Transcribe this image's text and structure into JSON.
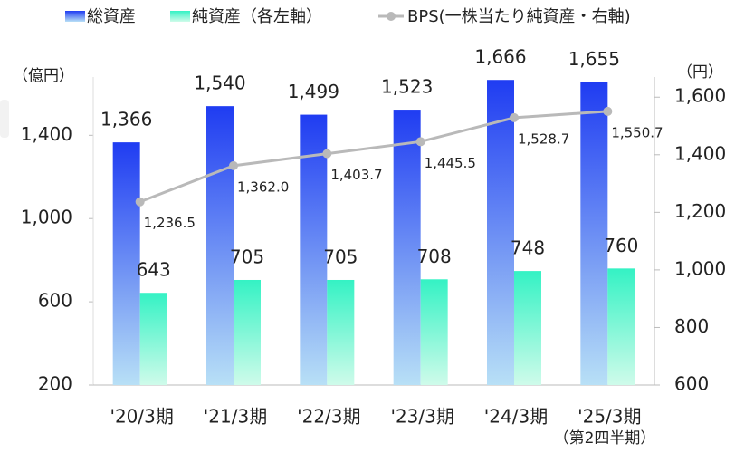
{
  "chart_data": {
    "type": "bar",
    "categories": [
      "'20/3期",
      "'21/3期",
      "'22/3期",
      "'23/3期",
      "'24/3期",
      "'25/3期"
    ],
    "annotation": "（第2四半期）",
    "ylabel": "（億円）",
    "y2label": "（円）",
    "ylim": [
      200,
      1680
    ],
    "yticks": [
      200,
      600,
      {
        "value": 1000,
        "label": "1,000"
      },
      {
        "value": 1400,
        "label": "1,400"
      }
    ],
    "y2lim": [
      600,
      1670
    ],
    "y2ticks": [
      600,
      800,
      {
        "value": 1000,
        "label": "1,000"
      },
      {
        "value": 1200,
        "label": "1,200"
      },
      {
        "value": 1400,
        "label": "1,400"
      },
      {
        "value": 1600,
        "label": "1,600"
      }
    ],
    "series": [
      {
        "name": "総資産",
        "type": "bar",
        "color": "#1f3cf2",
        "values": [
          1366,
          1540,
          1499,
          1523,
          1666,
          1655
        ],
        "value_labels": [
          "1,366",
          "1,540",
          "1,499",
          "1,523",
          "1,666",
          "1,655"
        ]
      },
      {
        "name": "純資産（各左軸）",
        "type": "bar",
        "color": "#34f2c4",
        "values": [
          643,
          705,
          705,
          708,
          748,
          760
        ]
      },
      {
        "name": "BPS(一株当たり純資産・右軸)",
        "type": "line",
        "axis": "y2",
        "color": "#b9b9b9",
        "values": [
          1236.5,
          1362.0,
          1403.7,
          1445.5,
          1528.7,
          1550.7
        ],
        "value_labels": [
          "1,236.5",
          "1,362.0",
          "1,403.7",
          "1,445.5",
          "1,528.7",
          "1,550.7"
        ]
      }
    ]
  }
}
